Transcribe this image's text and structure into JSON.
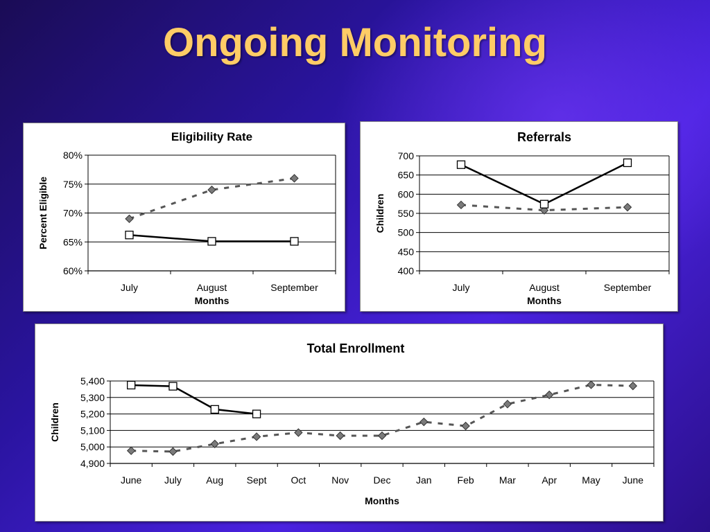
{
  "slide": {
    "title": "Ongoing Monitoring"
  },
  "chart_data": [
    {
      "type": "line",
      "title": "Eligibility Rate",
      "xlabel": "Months",
      "ylabel": "Percent Eligible",
      "categories": [
        "July",
        "August",
        "September"
      ],
      "ylim": [
        60,
        80
      ],
      "yticks": [
        "60%",
        "65%",
        "70%",
        "75%",
        "80%"
      ],
      "grid": true,
      "series": [
        {
          "style": "solid",
          "marker": "square",
          "values": [
            66.2,
            65.1,
            65.1
          ]
        },
        {
          "style": "dashed",
          "marker": "diamond",
          "values": [
            69.0,
            74.0,
            76.0
          ]
        }
      ]
    },
    {
      "type": "line",
      "title": "Referrals",
      "xlabel": "Months",
      "ylabel": "Children",
      "categories": [
        "July",
        "August",
        "September"
      ],
      "ylim": [
        400,
        700
      ],
      "yticks": [
        "400",
        "450",
        "500",
        "550",
        "600",
        "650",
        "700"
      ],
      "grid": true,
      "series": [
        {
          "style": "solid",
          "marker": "square",
          "values": [
            677,
            574,
            682
          ]
        },
        {
          "style": "dashed",
          "marker": "diamond",
          "values": [
            572,
            558,
            566
          ]
        }
      ]
    },
    {
      "type": "line",
      "title": "Total Enrollment",
      "xlabel": "Months",
      "ylabel": "Children",
      "categories": [
        "June",
        "July",
        "Aug",
        "Sept",
        "Oct",
        "Nov",
        "Dec",
        "Jan",
        "Feb",
        "Mar",
        "Apr",
        "May",
        "June"
      ],
      "ylim": [
        4900,
        5400
      ],
      "yticks": [
        "4,900",
        "5,000",
        "5,100",
        "5,200",
        "5,300",
        "5,400"
      ],
      "grid": true,
      "series": [
        {
          "style": "solid",
          "marker": "square",
          "values": [
            5375,
            5368,
            5228,
            5200,
            null,
            null,
            null,
            null,
            null,
            null,
            null,
            null,
            null
          ]
        },
        {
          "style": "dashed",
          "marker": "diamond",
          "values": [
            4977,
            4972,
            5018,
            5062,
            5087,
            5068,
            5068,
            5152,
            5127,
            5260,
            5316,
            5377,
            5370
          ]
        }
      ]
    }
  ]
}
